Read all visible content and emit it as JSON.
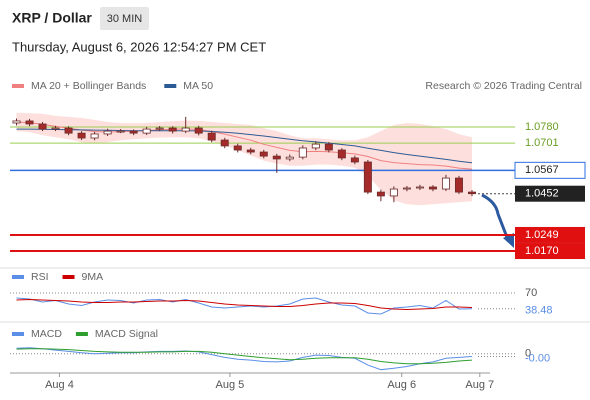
{
  "header": {
    "title": "XRP / Dollar",
    "interval": "30 MIN",
    "datetime": "Thursday, August 6, 2026 12:54:27 PM CET",
    "credit": "Research © 2026 Trading Central"
  },
  "chart_data": [
    {
      "type": "candlestick",
      "legend": [
        {
          "name": "MA 20 + Bollinger Bands",
          "color": "#f08080"
        },
        {
          "name": "MA 50",
          "color": "#2c5a94"
        }
      ],
      "up_color": "#ffffff",
      "down_color": "#a52a2a",
      "wick_color": "#6b2a2a",
      "band_color": "#fde0dd",
      "xlim": [
        -0.5,
        36
      ],
      "ylim": [
        1.0116,
        1.0913
      ],
      "xticks": [
        {
          "value": 3.3,
          "label": "Aug 4"
        },
        {
          "value": 16.4,
          "label": "Aug 5"
        },
        {
          "value": 29.6,
          "label": "Aug 6"
        },
        {
          "value": 35.6,
          "label": "Aug 7"
        }
      ],
      "open": [
        1.08,
        1.081,
        1.0795,
        1.077,
        1.0775,
        1.075,
        1.0726,
        1.0746,
        1.076,
        1.076,
        1.075,
        1.077,
        1.0775,
        1.076,
        1.0775,
        1.075,
        1.0716,
        1.0687,
        1.0667,
        1.0657,
        1.0637,
        1.0623,
        1.0632,
        1.0677,
        1.0696,
        1.0667,
        1.0628,
        1.0608,
        1.046,
        1.0441,
        1.0475,
        1.048,
        1.0485,
        1.0475,
        1.0529,
        1.046
      ],
      "high": [
        1.0822,
        1.082,
        1.0805,
        1.0786,
        1.0784,
        1.076,
        1.0756,
        1.0772,
        1.077,
        1.0768,
        1.0781,
        1.0785,
        1.0784,
        1.083,
        1.0786,
        1.0762,
        1.0727,
        1.0698,
        1.0678,
        1.0668,
        1.0648,
        1.0645,
        1.069,
        1.071,
        1.0706,
        1.0676,
        1.064,
        1.0618,
        1.0472,
        1.0488,
        1.049,
        1.0496,
        1.0494,
        1.0545,
        1.054,
        1.047
      ],
      "low": [
        1.0788,
        1.0784,
        1.076,
        1.076,
        1.074,
        1.0716,
        1.0715,
        1.0736,
        1.075,
        1.074,
        1.0741,
        1.076,
        1.0748,
        1.075,
        1.0739,
        1.0705,
        1.0676,
        1.0655,
        1.0646,
        1.0626,
        1.0555,
        1.0612,
        1.0621,
        1.0666,
        1.0655,
        1.0617,
        1.0597,
        1.045,
        1.0415,
        1.041,
        1.0464,
        1.047,
        1.0464,
        1.0465,
        1.045,
        1.044
      ],
      "close": [
        1.081,
        1.0795,
        1.077,
        1.0775,
        1.075,
        1.0726,
        1.0746,
        1.076,
        1.076,
        1.075,
        1.077,
        1.0775,
        1.076,
        1.0775,
        1.075,
        1.0716,
        1.0687,
        1.0667,
        1.0657,
        1.0637,
        1.0623,
        1.0632,
        1.0677,
        1.0696,
        1.0667,
        1.0628,
        1.0608,
        1.046,
        1.0441,
        1.0475,
        1.048,
        1.0485,
        1.0475,
        1.0529,
        1.046,
        1.0452
      ],
      "bb_upper": [
        1.085,
        1.0848,
        1.0845,
        1.0835,
        1.083,
        1.0825,
        1.0815,
        1.0805,
        1.08,
        1.0798,
        1.08,
        1.0805,
        1.0808,
        1.0812,
        1.081,
        1.0805,
        1.08,
        1.0795,
        1.079,
        1.0775,
        1.076,
        1.074,
        1.0725,
        1.0725,
        1.072,
        1.0715,
        1.0715,
        1.073,
        1.076,
        1.079,
        1.08,
        1.0795,
        1.0785,
        1.077,
        1.0745,
        1.073
      ],
      "bb_lower": [
        1.076,
        1.0755,
        1.074,
        1.073,
        1.072,
        1.0705,
        1.07,
        1.0705,
        1.0715,
        1.072,
        1.0725,
        1.0728,
        1.073,
        1.073,
        1.0725,
        1.071,
        1.069,
        1.0665,
        1.064,
        1.0615,
        1.06,
        1.059,
        1.059,
        1.0595,
        1.0595,
        1.059,
        1.058,
        1.054,
        1.047,
        1.042,
        1.04,
        1.0395,
        1.04,
        1.0405,
        1.041,
        1.0415
      ],
      "ma20": [
        1.0805,
        1.0802,
        1.0793,
        1.0783,
        1.0775,
        1.0765,
        1.0758,
        1.0755,
        1.0758,
        1.0759,
        1.0763,
        1.0767,
        1.0769,
        1.0771,
        1.0768,
        1.0758,
        1.0745,
        1.073,
        1.0715,
        1.0695,
        1.068,
        1.0665,
        1.0658,
        1.066,
        1.0658,
        1.0653,
        1.0648,
        1.0635,
        1.0615,
        1.0605,
        1.06,
        1.0595,
        1.0593,
        1.0588,
        1.0578,
        1.0573
      ],
      "ma50": [
        1.077,
        1.077,
        1.0769,
        1.0768,
        1.0767,
        1.0766,
        1.0765,
        1.0764,
        1.0763,
        1.0762,
        1.0762,
        1.0762,
        1.0762,
        1.0762,
        1.0761,
        1.0758,
        1.0754,
        1.0749,
        1.0743,
        1.0736,
        1.0728,
        1.072,
        1.0713,
        1.0707,
        1.0701,
        1.0694,
        1.0687,
        1.0676,
        1.0665,
        1.0654,
        1.0645,
        1.0637,
        1.0629,
        1.0621,
        1.0612,
        1.0604
      ],
      "levels": [
        {
          "value": 1.078,
          "label": "1.0780",
          "kind": "target",
          "color": "#9acd50"
        },
        {
          "value": 1.0701,
          "label": "1.0701",
          "kind": "target",
          "color": "#9acd50"
        },
        {
          "value": 1.0567,
          "label": "1.0567",
          "kind": "pivot",
          "color": "#2f6fe0"
        },
        {
          "value": 1.0452,
          "label": "1.0452",
          "kind": "last",
          "color": "#222222"
        },
        {
          "value": 1.0249,
          "label": "1.0249",
          "kind": "support",
          "color": "#e01010"
        },
        {
          "value": 1.017,
          "label": "1.0170",
          "kind": "support",
          "color": "#e01010"
        }
      ]
    },
    {
      "type": "line",
      "ylim": [
        20,
        80
      ],
      "yticks": [
        70
      ],
      "series": [
        {
          "name": "RSI",
          "color": "#5b8ee6",
          "values": [
            60,
            58,
            52,
            55,
            48,
            45,
            52,
            56,
            55,
            50,
            56,
            57,
            52,
            57,
            50,
            42,
            40,
            42,
            44,
            42,
            44,
            48,
            58,
            60,
            52,
            46,
            44,
            30,
            28,
            40,
            42,
            45,
            40,
            55,
            38,
            38.48
          ]
        },
        {
          "name": "9MA",
          "color": "#cc0000",
          "values": [
            56,
            57,
            56,
            55,
            54,
            52,
            51,
            51,
            52,
            52,
            53,
            54,
            54,
            55,
            54,
            51,
            48,
            46,
            45,
            44,
            43,
            43,
            45,
            48,
            50,
            50,
            49,
            45,
            40,
            38,
            37,
            38,
            39,
            42,
            42,
            41
          ]
        }
      ]
    },
    {
      "type": "line",
      "ylim": [
        -0.004,
        0.003
      ],
      "yticks": [
        0
      ],
      "last_value_label": "-0.00",
      "series": [
        {
          "name": "MACD",
          "color": "#5b8ee6",
          "values": [
            0.0012,
            0.0013,
            0.0011,
            0.0008,
            0.0005,
            0.0002,
            0.0,
            0.0001,
            0.0002,
            0.0002,
            0.0004,
            0.0005,
            0.0005,
            0.0006,
            0.0004,
            -0.0002,
            -0.0008,
            -0.0012,
            -0.0014,
            -0.0017,
            -0.0018,
            -0.0016,
            -0.0008,
            -0.0003,
            -0.0004,
            -0.0008,
            -0.001,
            -0.0025,
            -0.0035,
            -0.0032,
            -0.0028,
            -0.0022,
            -0.0018,
            -0.001,
            -0.0008,
            -0.0006
          ]
        },
        {
          "name": "MACD Signal",
          "color": "#2e9e2e",
          "values": [
            0.001,
            0.0011,
            0.0011,
            0.001,
            0.0009,
            0.0007,
            0.0005,
            0.0004,
            0.0003,
            0.0003,
            0.0003,
            0.0004,
            0.0004,
            0.0005,
            0.0005,
            0.0003,
            0.0,
            -0.0003,
            -0.0006,
            -0.0009,
            -0.0011,
            -0.0013,
            -0.0012,
            -0.001,
            -0.0009,
            -0.0009,
            -0.0009,
            -0.0012,
            -0.0017,
            -0.002,
            -0.0022,
            -0.0022,
            -0.0021,
            -0.0019,
            -0.0016,
            -0.0014
          ]
        }
      ]
    }
  ]
}
